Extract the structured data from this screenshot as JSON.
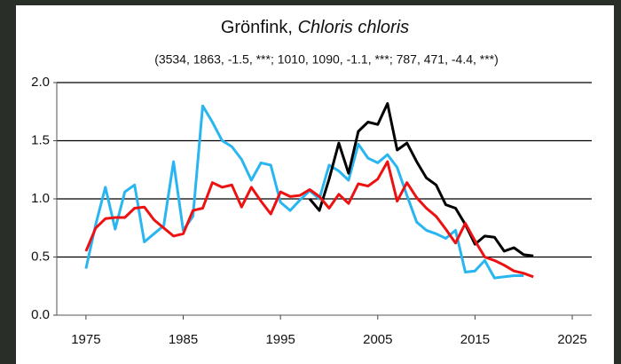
{
  "chart_data": {
    "type": "line",
    "title": {
      "common": "Grönfink,",
      "scientific": "Chloris chloris"
    },
    "subtitle": "(3534, 1863, -1.5, ***; 1010, 1090, -1.1, ***; 787, 471, -4.4, ***)",
    "x": [
      1975,
      1976,
      1977,
      1978,
      1979,
      1980,
      1981,
      1982,
      1983,
      1984,
      1985,
      1986,
      1987,
      1988,
      1989,
      1990,
      1991,
      1992,
      1993,
      1994,
      1995,
      1996,
      1997,
      1998,
      1999,
      2000,
      2001,
      2002,
      2003,
      2004,
      2005,
      2006,
      2007,
      2008,
      2009,
      2010,
      2011,
      2012,
      2013,
      2014,
      2015,
      2016,
      2017,
      2018,
      2019,
      2020,
      2021
    ],
    "series": [
      {
        "color": "#29b6f0",
        "values": [
          0.4,
          0.78,
          1.1,
          0.74,
          1.06,
          1.12,
          0.63,
          0.7,
          0.77,
          1.32,
          0.73,
          0.85,
          1.8,
          1.66,
          1.5,
          1.45,
          1.34,
          1.16,
          1.31,
          1.29,
          0.97,
          0.9,
          0.99,
          1.07,
          1.0,
          1.29,
          1.24,
          1.16,
          1.47,
          1.35,
          1.31,
          1.38,
          1.27,
          1.03,
          0.8,
          0.73,
          0.7,
          0.66,
          0.73,
          0.37,
          0.38,
          0.47,
          0.32,
          0.33,
          0.34,
          0.34,
          null
        ]
      },
      {
        "color": "#000000",
        "values": [
          null,
          null,
          null,
          null,
          null,
          null,
          null,
          null,
          null,
          null,
          null,
          null,
          null,
          null,
          null,
          null,
          null,
          null,
          null,
          null,
          null,
          null,
          null,
          1.0,
          0.9,
          1.17,
          1.48,
          1.22,
          1.58,
          1.66,
          1.64,
          1.82,
          1.42,
          1.48,
          1.32,
          1.18,
          1.12,
          0.95,
          0.92,
          0.78,
          0.61,
          0.68,
          0.67,
          0.55,
          0.58,
          0.52,
          0.51
        ]
      },
      {
        "color": "#ee1111",
        "values": [
          0.55,
          0.75,
          0.83,
          0.84,
          0.84,
          0.92,
          0.93,
          0.82,
          0.75,
          0.68,
          0.7,
          0.9,
          0.92,
          1.14,
          1.1,
          1.12,
          0.93,
          1.1,
          0.98,
          0.87,
          1.06,
          1.02,
          1.03,
          1.08,
          1.02,
          0.92,
          1.04,
          0.96,
          1.13,
          1.11,
          1.17,
          1.32,
          0.98,
          1.14,
          1.01,
          0.92,
          0.85,
          0.74,
          0.62,
          0.79,
          0.64,
          0.5,
          0.47,
          0.43,
          0.38,
          0.36,
          0.33
        ]
      }
    ],
    "xlim": [
      1972,
      2027
    ],
    "xticks": [
      1975,
      1985,
      1995,
      2005,
      2015,
      2025
    ],
    "ylim": [
      0,
      2
    ],
    "yticks": [
      {
        "value": 0,
        "label": "0.0"
      },
      {
        "value": 0.5,
        "label": "0.5"
      },
      {
        "value": 1,
        "label": "1.0"
      },
      {
        "value": 1.5,
        "label": "1.5"
      },
      {
        "value": 2,
        "label": "2.0"
      }
    ],
    "grid": true
  }
}
